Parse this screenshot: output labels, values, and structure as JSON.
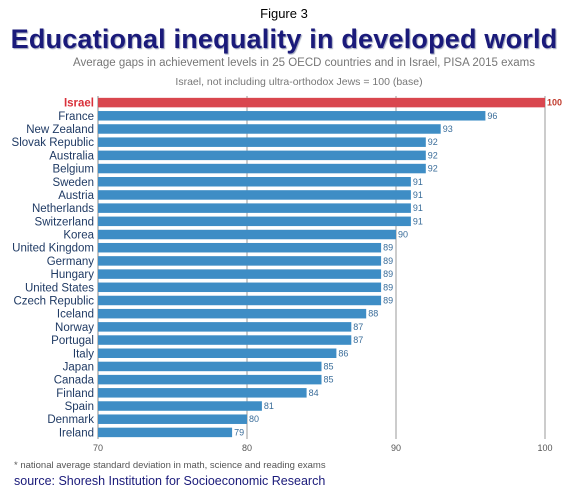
{
  "figure_label": "Figure 3",
  "chart_data": {
    "type": "bar",
    "orientation": "horizontal",
    "title": "Educational inequality in developed world",
    "subtitle": "Average gaps in achievement levels in 25 OECD countries and in Israel, PISA 2015 exams",
    "base_note": "Israel, not including ultra-orthodox Jews = 100 (base)",
    "categories": [
      "Israel",
      "France",
      "New Zealand",
      "Slovak Republic",
      "Australia",
      "Belgium",
      "Sweden",
      "Austria",
      "Netherlands",
      "Switzerland",
      "Korea",
      "United Kingdom",
      "Germany",
      "Hungary",
      "United States",
      "Czech Republic",
      "Iceland",
      "Norway",
      "Portugal",
      "Italy",
      "Japan",
      "Canada",
      "Finland",
      "Spain",
      "Denmark",
      "Ireland"
    ],
    "values": [
      100,
      96,
      93,
      92,
      92,
      92,
      91,
      91,
      91,
      91,
      90,
      89,
      89,
      89,
      89,
      89,
      88,
      87,
      87,
      86,
      85,
      85,
      84,
      81,
      80,
      79
    ],
    "highlight": "Israel",
    "xlim": [
      70,
      100
    ],
    "xticks": [
      70,
      80,
      90,
      100
    ],
    "grid": "vertical",
    "colors": {
      "bar": "#3e8dc5",
      "highlight": "#d9464e",
      "grid": "#9a9a9a",
      "axis": "#8a8a8a"
    }
  },
  "footnote": "* national average standard deviation in math, science and reading exams",
  "source": "source: Shoresh Institution for Socioeconomic Research"
}
